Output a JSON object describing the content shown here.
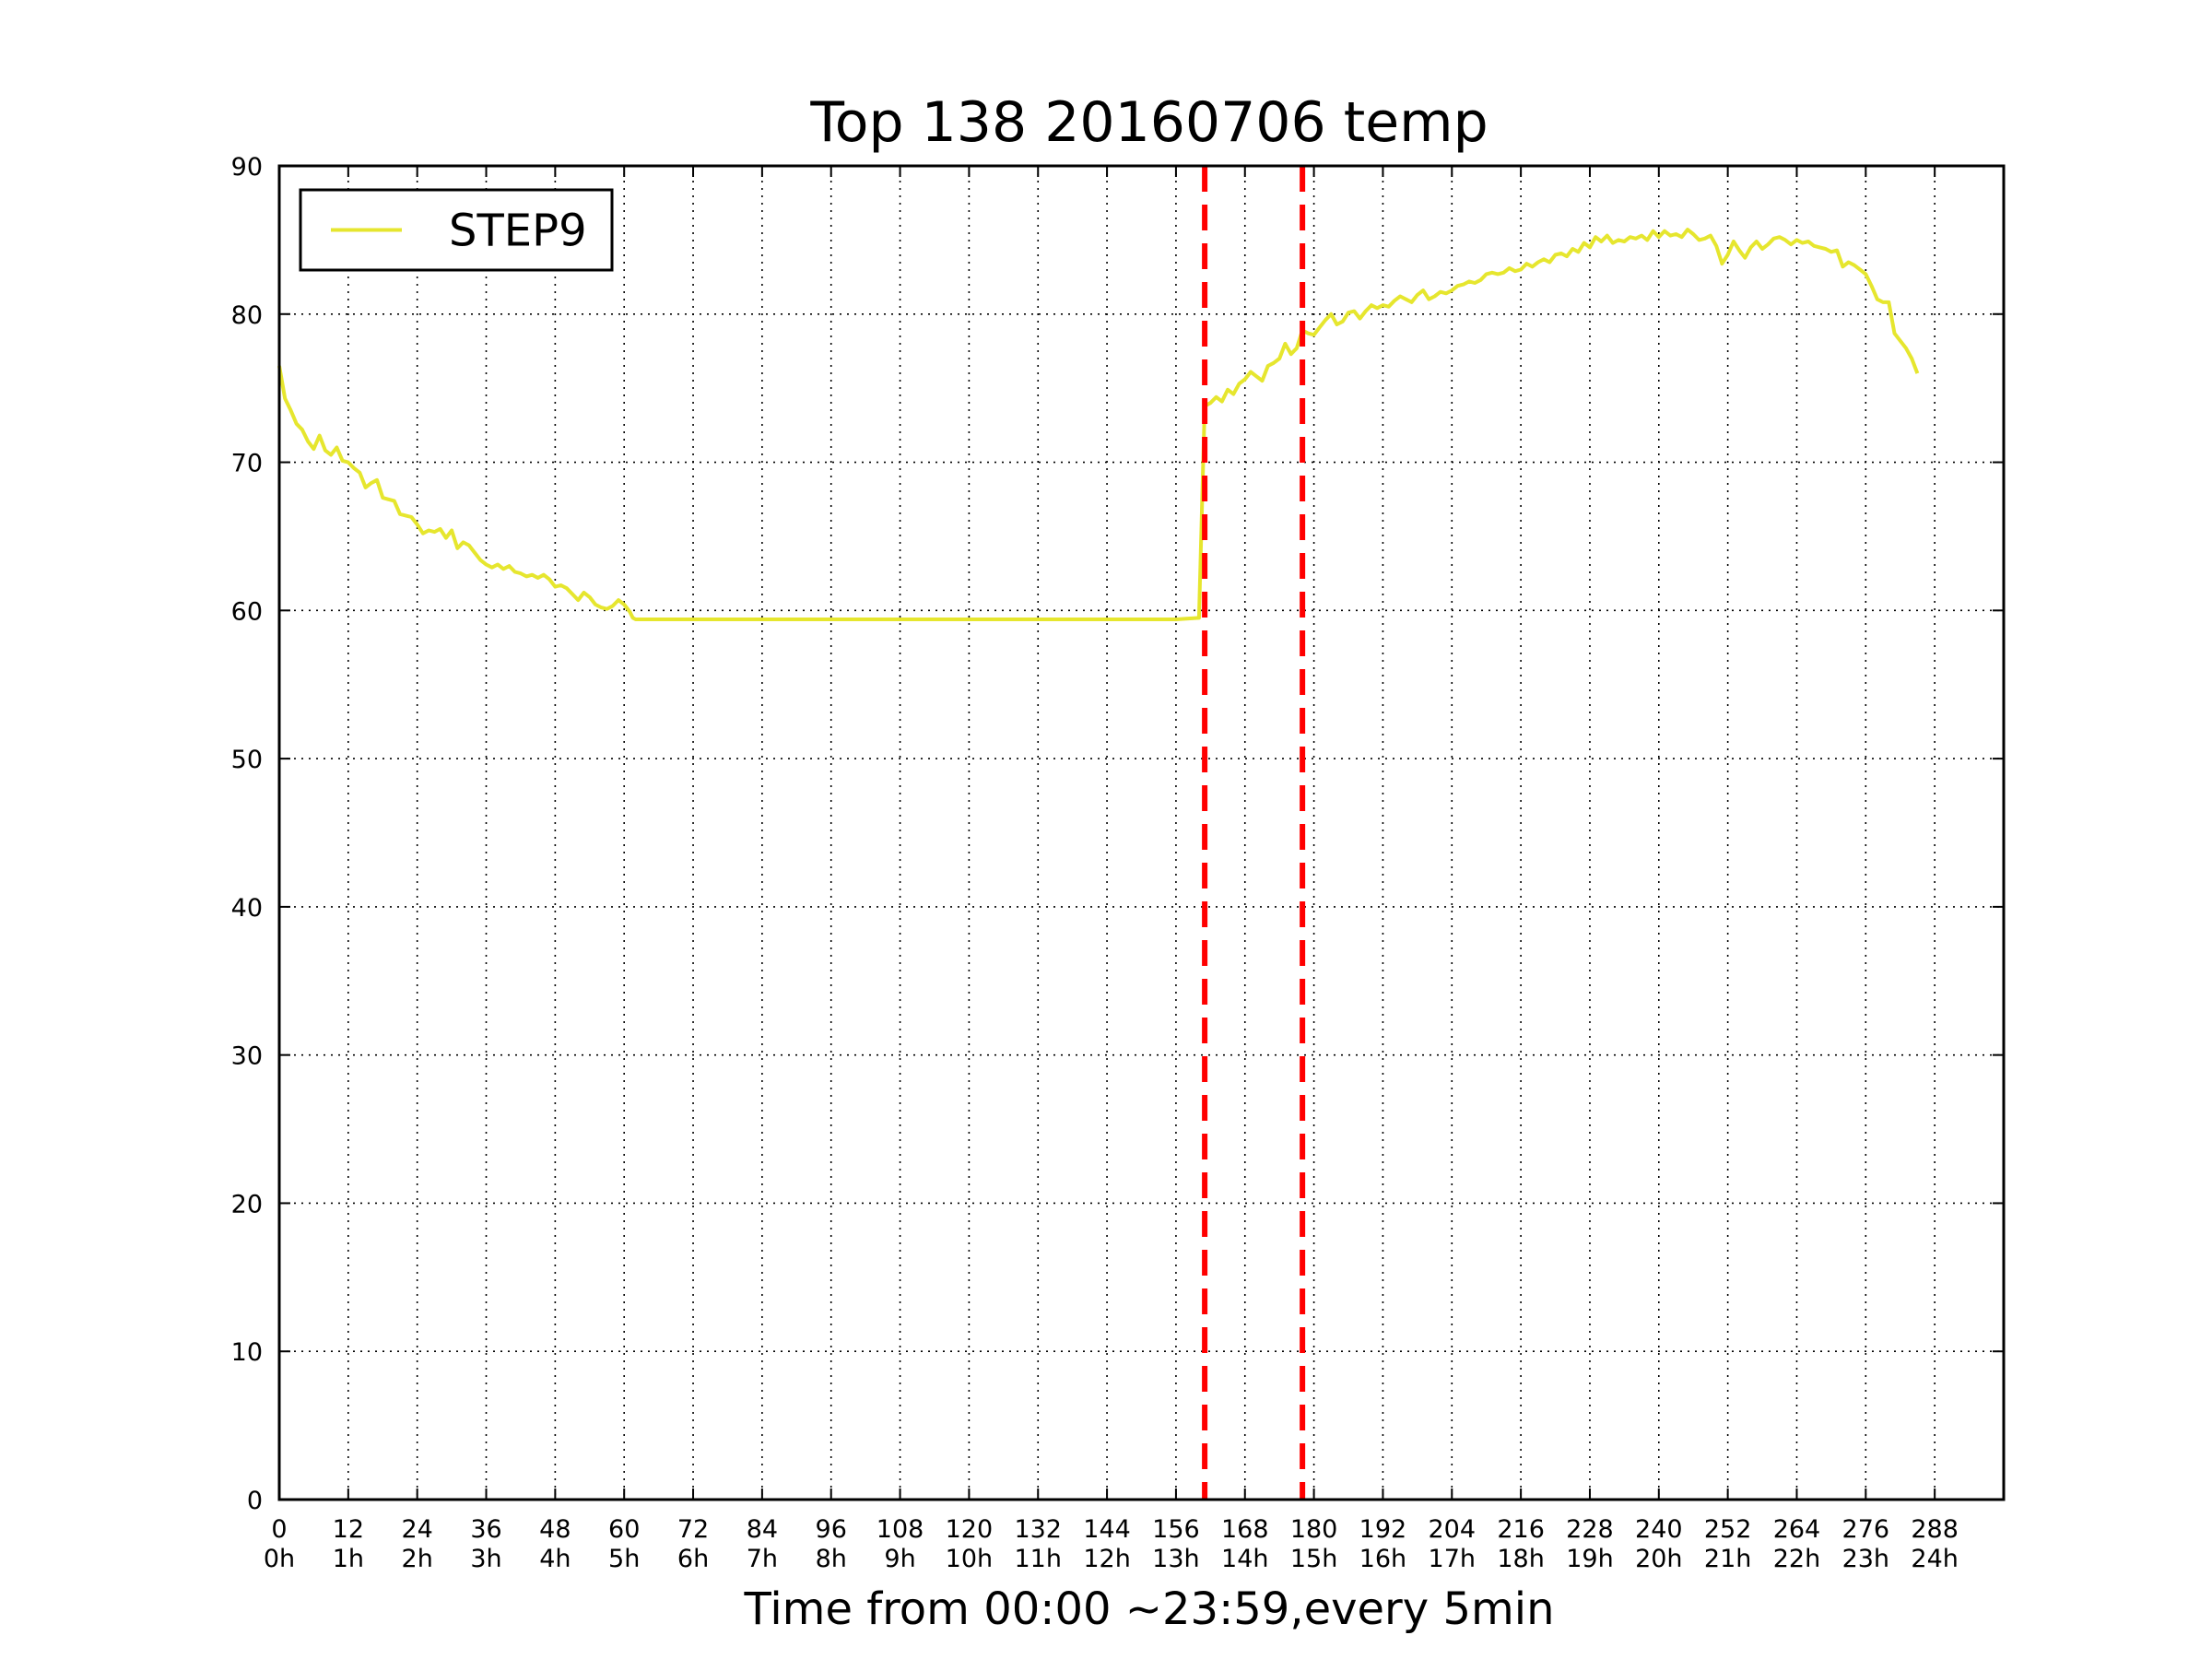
{
  "chart_data": {
    "type": "line",
    "title": "Top 138 20160706 temp",
    "xlabel": "Time from 00:00 ~23:59,every 5min",
    "ylabel": "",
    "xlim": [
      0,
      300
    ],
    "ylim": [
      0,
      90
    ],
    "grid": true,
    "legend_position": "top-left",
    "x_ticks": [
      0,
      12,
      24,
      36,
      48,
      60,
      72,
      84,
      96,
      108,
      120,
      132,
      144,
      156,
      168,
      180,
      192,
      204,
      216,
      228,
      240,
      252,
      264,
      276,
      288
    ],
    "x_tick_labels_line1": [
      "0",
      "12",
      "24",
      "36",
      "48",
      "60",
      "72",
      "84",
      "96",
      "108",
      "120",
      "132",
      "144",
      "156",
      "168",
      "180",
      "192",
      "204",
      "216",
      "228",
      "240",
      "252",
      "264",
      "276",
      "288"
    ],
    "x_tick_labels_line2": [
      "0h",
      "1h",
      "2h",
      "3h",
      "4h",
      "5h",
      "6h",
      "7h",
      "8h",
      "9h",
      "10h",
      "11h",
      "12h",
      "13h",
      "14h",
      "15h",
      "16h",
      "17h",
      "18h",
      "19h",
      "20h",
      "21h",
      "22h",
      "23h",
      "24h"
    ],
    "y_ticks": [
      0,
      10,
      20,
      30,
      40,
      50,
      60,
      70,
      80,
      90
    ],
    "y_tick_labels": [
      "0",
      "10",
      "20",
      "30",
      "40",
      "50",
      "60",
      "70",
      "80",
      "90"
    ],
    "vlines": [
      {
        "x": 161,
        "color": "#ff0000",
        "style": "dashed"
      },
      {
        "x": 178,
        "color": "#ff0000",
        "style": "dashed"
      }
    ],
    "series": [
      {
        "name": "STEP9",
        "color": "#e6e62e",
        "points": [
          [
            0,
            76.5
          ],
          [
            1,
            74.3
          ],
          [
            2,
            73.5
          ],
          [
            3,
            72.6
          ],
          [
            4,
            72.2
          ],
          [
            5,
            71.4
          ],
          [
            6,
            70.9
          ],
          [
            7,
            71.8
          ],
          [
            8,
            70.8
          ],
          [
            9,
            70.5
          ],
          [
            10,
            71.0
          ],
          [
            11,
            70.1
          ],
          [
            12,
            70.0
          ],
          [
            13,
            69.6
          ],
          [
            14,
            69.3
          ],
          [
            15,
            68.3
          ],
          [
            16,
            68.6
          ],
          [
            17,
            68.8
          ],
          [
            18,
            67.6
          ],
          [
            19,
            67.5
          ],
          [
            20,
            67.4
          ],
          [
            21,
            66.5
          ],
          [
            22,
            66.4
          ],
          [
            23,
            66.3
          ],
          [
            24,
            65.8
          ],
          [
            25,
            65.2
          ],
          [
            26,
            65.4
          ],
          [
            27,
            65.3
          ],
          [
            28,
            65.5
          ],
          [
            29,
            64.9
          ],
          [
            30,
            65.4
          ],
          [
            31,
            64.2
          ],
          [
            32,
            64.6
          ],
          [
            33,
            64.4
          ],
          [
            34,
            63.9
          ],
          [
            35,
            63.4
          ],
          [
            36,
            63.1
          ],
          [
            37,
            62.9
          ],
          [
            38,
            63.1
          ],
          [
            39,
            62.8
          ],
          [
            40,
            63.0
          ],
          [
            41,
            62.6
          ],
          [
            42,
            62.5
          ],
          [
            43,
            62.3
          ],
          [
            44,
            62.4
          ],
          [
            45,
            62.2
          ],
          [
            46,
            62.4
          ],
          [
            47,
            62.1
          ],
          [
            48,
            61.6
          ],
          [
            49,
            61.7
          ],
          [
            50,
            61.5
          ],
          [
            51,
            61.1
          ],
          [
            52,
            60.7
          ],
          [
            53,
            61.2
          ],
          [
            54,
            60.9
          ],
          [
            55,
            60.4
          ],
          [
            56,
            60.2
          ],
          [
            57,
            60.1
          ],
          [
            58,
            60.3
          ],
          [
            59,
            60.7
          ],
          [
            60,
            60.4
          ],
          [
            61,
            59.9
          ],
          [
            61.5,
            59.5
          ],
          [
            62,
            59.4
          ],
          [
            72,
            59.4
          ],
          [
            84,
            59.4
          ],
          [
            96,
            59.4
          ],
          [
            108,
            59.4
          ],
          [
            120,
            59.4
          ],
          [
            132,
            59.4
          ],
          [
            144,
            59.4
          ],
          [
            156,
            59.4
          ],
          [
            160,
            59.5
          ],
          [
            161,
            73.8
          ],
          [
            162,
            74.0
          ],
          [
            163,
            74.4
          ],
          [
            164,
            74.1
          ],
          [
            165,
            74.9
          ],
          [
            166,
            74.6
          ],
          [
            167,
            75.3
          ],
          [
            168,
            75.6
          ],
          [
            169,
            76.1
          ],
          [
            170,
            75.8
          ],
          [
            171,
            75.5
          ],
          [
            172,
            76.5
          ],
          [
            173,
            76.7
          ],
          [
            174,
            77.0
          ],
          [
            175,
            78.0
          ],
          [
            176,
            77.3
          ],
          [
            177,
            77.7
          ],
          [
            178,
            78.9
          ],
          [
            179,
            78.7
          ],
          [
            180,
            78.6
          ],
          [
            181,
            79.1
          ],
          [
            182,
            79.6
          ],
          [
            183,
            80.0
          ],
          [
            184,
            79.3
          ],
          [
            185,
            79.5
          ],
          [
            186,
            80.1
          ],
          [
            187,
            80.2
          ],
          [
            188,
            79.7
          ],
          [
            189,
            80.2
          ],
          [
            190,
            80.6
          ],
          [
            191,
            80.4
          ],
          [
            192,
            80.6
          ],
          [
            193,
            80.5
          ],
          [
            194,
            80.9
          ],
          [
            195,
            81.2
          ],
          [
            196,
            81.0
          ],
          [
            197,
            80.8
          ],
          [
            198,
            81.3
          ],
          [
            199,
            81.6
          ],
          [
            200,
            81.0
          ],
          [
            201,
            81.2
          ],
          [
            202,
            81.5
          ],
          [
            203,
            81.4
          ],
          [
            204,
            81.6
          ],
          [
            205,
            81.9
          ],
          [
            206,
            82.0
          ],
          [
            207,
            82.2
          ],
          [
            208,
            82.1
          ],
          [
            209,
            82.3
          ],
          [
            210,
            82.7
          ],
          [
            211,
            82.8
          ],
          [
            212,
            82.7
          ],
          [
            213,
            82.8
          ],
          [
            214,
            83.1
          ],
          [
            215,
            82.9
          ],
          [
            216,
            83.0
          ],
          [
            217,
            83.4
          ],
          [
            218,
            83.2
          ],
          [
            219,
            83.5
          ],
          [
            220,
            83.7
          ],
          [
            221,
            83.5
          ],
          [
            222,
            84.0
          ],
          [
            223,
            84.1
          ],
          [
            224,
            83.9
          ],
          [
            225,
            84.4
          ],
          [
            226,
            84.2
          ],
          [
            227,
            84.8
          ],
          [
            228,
            84.5
          ],
          [
            229,
            85.2
          ],
          [
            230,
            84.9
          ],
          [
            231,
            85.3
          ],
          [
            232,
            84.8
          ],
          [
            233,
            85.0
          ],
          [
            234,
            84.9
          ],
          [
            235,
            85.2
          ],
          [
            236,
            85.1
          ],
          [
            237,
            85.3
          ],
          [
            238,
            85.0
          ],
          [
            239,
            85.6
          ],
          [
            240,
            85.2
          ],
          [
            241,
            85.6
          ],
          [
            242,
            85.3
          ],
          [
            243,
            85.4
          ],
          [
            244,
            85.2
          ],
          [
            245,
            85.7
          ],
          [
            246,
            85.4
          ],
          [
            247,
            85.0
          ],
          [
            248,
            85.1
          ],
          [
            249,
            85.3
          ],
          [
            250,
            84.6
          ],
          [
            251,
            83.4
          ],
          [
            252,
            84.0
          ],
          [
            253,
            84.9
          ],
          [
            254,
            84.3
          ],
          [
            255,
            83.8
          ],
          [
            256,
            84.5
          ],
          [
            257,
            84.9
          ],
          [
            258,
            84.4
          ],
          [
            259,
            84.7
          ],
          [
            260,
            85.1
          ],
          [
            261,
            85.2
          ],
          [
            262,
            85.0
          ],
          [
            263,
            84.7
          ],
          [
            264,
            85.0
          ],
          [
            265,
            84.8
          ],
          [
            266,
            84.9
          ],
          [
            267,
            84.6
          ],
          [
            268,
            84.5
          ],
          [
            269,
            84.4
          ],
          [
            270,
            84.2
          ],
          [
            271,
            84.3
          ],
          [
            272,
            83.2
          ],
          [
            273,
            83.5
          ],
          [
            274,
            83.3
          ],
          [
            275,
            83.0
          ],
          [
            276,
            82.7
          ],
          [
            277,
            81.9
          ],
          [
            278,
            81.0
          ],
          [
            279,
            80.8
          ],
          [
            280,
            80.8
          ],
          [
            281,
            78.7
          ],
          [
            282,
            78.2
          ],
          [
            283,
            77.7
          ],
          [
            284,
            77.0
          ],
          [
            285,
            76.0
          ]
        ]
      }
    ]
  }
}
